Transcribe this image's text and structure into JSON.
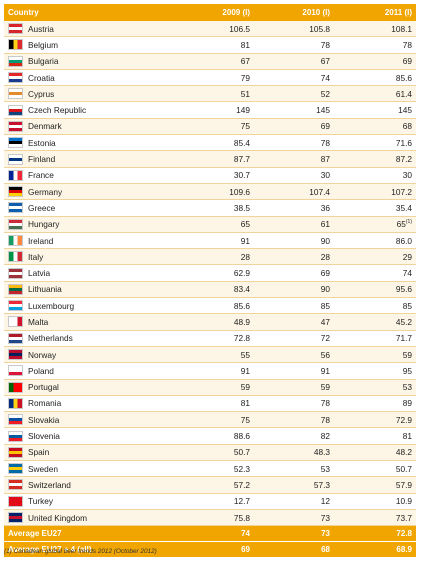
{
  "header": {
    "country": "Country",
    "col2009": "2009 (l)",
    "col2010": "2010 (l)",
    "col2011": "2011 (l)"
  },
  "rows": [
    {
      "country": "Austria",
      "v2009": "106.5",
      "v2010": "105.8",
      "v2011": "108.1",
      "flag": [
        "#d8232a",
        "#ffffff",
        "#d8232a"
      ],
      "dir": "h"
    },
    {
      "country": "Belgium",
      "v2009": "81",
      "v2010": "78",
      "v2011": "78",
      "flag": [
        "#000000",
        "#fcd116",
        "#e0282f"
      ],
      "dir": "v"
    },
    {
      "country": "Bulgaria",
      "v2009": "67",
      "v2010": "67",
      "v2011": "69",
      "flag": [
        "#ffffff",
        "#009b74",
        "#d62612"
      ],
      "dir": "h"
    },
    {
      "country": "Croatia",
      "v2009": "79",
      "v2010": "74",
      "v2011": "85.6",
      "flag": [
        "#e3262a",
        "#ffffff",
        "#1a3c8f"
      ],
      "dir": "h"
    },
    {
      "country": "Cyprus",
      "v2009": "51",
      "v2010": "52",
      "v2011": "61.4",
      "flag": [
        "#ffffff",
        "#e38a2e",
        "#ffffff"
      ],
      "dir": "h"
    },
    {
      "country": "Czech Republic",
      "v2009": "149",
      "v2010": "145",
      "v2011": "145",
      "flag": [
        "#ffffff",
        "#d7141a",
        "#11457e"
      ],
      "dir": "h"
    },
    {
      "country": "Denmark",
      "v2009": "75",
      "v2010": "69",
      "v2011": "68",
      "flag": [
        "#c8102e",
        "#ffffff",
        "#c8102e"
      ],
      "dir": "h"
    },
    {
      "country": "Estonia",
      "v2009": "85.4",
      "v2010": "78",
      "v2011": "71.6",
      "flag": [
        "#0072ce",
        "#000000",
        "#ffffff"
      ],
      "dir": "h"
    },
    {
      "country": "Finland",
      "v2009": "87.7",
      "v2010": "87",
      "v2011": "87.2",
      "flag": [
        "#ffffff",
        "#003580",
        "#ffffff"
      ],
      "dir": "h"
    },
    {
      "country": "France",
      "v2009": "30.7",
      "v2010": "30",
      "v2011": "30",
      "flag": [
        "#002395",
        "#ffffff",
        "#ed2939"
      ],
      "dir": "v"
    },
    {
      "country": "Germany",
      "v2009": "109.6",
      "v2010": "107.4",
      "v2011": "107.2",
      "flag": [
        "#000000",
        "#dd0000",
        "#ffce00"
      ],
      "dir": "h"
    },
    {
      "country": "Greece",
      "v2009": "38.5",
      "v2010": "36",
      "v2011": "35.4",
      "flag": [
        "#0d5eaf",
        "#ffffff",
        "#0d5eaf"
      ],
      "dir": "h"
    },
    {
      "country": "Hungary",
      "v2009": "65",
      "v2010": "61",
      "v2011": "65",
      "v2011sup": "(1)",
      "flag": [
        "#ce2939",
        "#ffffff",
        "#477050"
      ],
      "dir": "h"
    },
    {
      "country": "Ireland",
      "v2009": "91",
      "v2010": "90",
      "v2011": "86.0",
      "flag": [
        "#169b62",
        "#ffffff",
        "#ff883e"
      ],
      "dir": "v"
    },
    {
      "country": "Italy",
      "v2009": "28",
      "v2010": "28",
      "v2011": "29",
      "flag": [
        "#009246",
        "#ffffff",
        "#ce2b37"
      ],
      "dir": "v"
    },
    {
      "country": "Latvia",
      "v2009": "62.9",
      "v2010": "69",
      "v2011": "74",
      "flag": [
        "#9e3039",
        "#ffffff",
        "#9e3039"
      ],
      "dir": "h"
    },
    {
      "country": "Lithuania",
      "v2009": "83.4",
      "v2010": "90",
      "v2011": "95.6",
      "flag": [
        "#fdb913",
        "#006a44",
        "#c1272d"
      ],
      "dir": "h"
    },
    {
      "country": "Luxembourg",
      "v2009": "85.6",
      "v2010": "85",
      "v2011": "85",
      "flag": [
        "#ed2939",
        "#ffffff",
        "#00a1de"
      ],
      "dir": "h"
    },
    {
      "country": "Malta",
      "v2009": "48.9",
      "v2010": "47",
      "v2011": "45.2",
      "flag": [
        "#ffffff",
        "#ffffff",
        "#cf142b"
      ],
      "dir": "v"
    },
    {
      "country": "Netherlands",
      "v2009": "72.8",
      "v2010": "72",
      "v2011": "71.7",
      "flag": [
        "#ae1c28",
        "#ffffff",
        "#21468b"
      ],
      "dir": "h"
    },
    {
      "country": "Norway",
      "v2009": "55",
      "v2010": "56",
      "v2011": "59",
      "flag": [
        "#ba0c2f",
        "#00205b",
        "#ba0c2f"
      ],
      "dir": "h"
    },
    {
      "country": "Poland",
      "v2009": "91",
      "v2010": "91",
      "v2011": "95",
      "flag": [
        "#ffffff",
        "#ffffff",
        "#dc143c"
      ],
      "dir": "h"
    },
    {
      "country": "Portugal",
      "v2009": "59",
      "v2010": "59",
      "v2011": "53",
      "flag": [
        "#006600",
        "#ff0000",
        "#ff0000"
      ],
      "dir": "v"
    },
    {
      "country": "Romania",
      "v2009": "81",
      "v2010": "78",
      "v2011": "89",
      "flag": [
        "#002b7f",
        "#fcd116",
        "#ce1126"
      ],
      "dir": "v"
    },
    {
      "country": "Slovakia",
      "v2009": "75",
      "v2010": "78",
      "v2011": "72.9",
      "flag": [
        "#ffffff",
        "#0b4ea2",
        "#ee1c25"
      ],
      "dir": "h"
    },
    {
      "country": "Slovenia",
      "v2009": "88.6",
      "v2010": "82",
      "v2011": "81",
      "flag": [
        "#ffffff",
        "#005da4",
        "#ed1c24"
      ],
      "dir": "h"
    },
    {
      "country": "Spain",
      "v2009": "50.7",
      "v2010": "48.3",
      "v2011": "48.2",
      "flag": [
        "#c60b1e",
        "#ffc400",
        "#c60b1e"
      ],
      "dir": "h"
    },
    {
      "country": "Sweden",
      "v2009": "52.3",
      "v2010": "53",
      "v2011": "50.7",
      "flag": [
        "#006aa7",
        "#fecc00",
        "#006aa7"
      ],
      "dir": "h"
    },
    {
      "country": "Switzerland",
      "v2009": "57.2",
      "v2010": "57.3",
      "v2011": "57.9",
      "flag": [
        "#d52b1e",
        "#ffffff",
        "#d52b1e"
      ],
      "dir": "h"
    },
    {
      "country": "Turkey",
      "v2009": "12.7",
      "v2010": "12",
      "v2011": "10.9",
      "flag": [
        "#e30a17",
        "#e30a17",
        "#e30a17"
      ],
      "dir": "h"
    },
    {
      "country": "United Kingdom",
      "v2009": "75.8",
      "v2010": "73",
      "v2011": "73.7",
      "flag": [
        "#012169",
        "#c8102e",
        "#012169"
      ],
      "dir": "h"
    }
  ],
  "footer": [
    {
      "label": "Average EU27",
      "v2009": "74",
      "v2010": "73",
      "v2011": "72.8"
    },
    {
      "label": "Average EU27 + 4 (all)",
      "v2009": "69",
      "v2010": "68",
      "v2011": "68.9"
    }
  ],
  "footnote": "(1) Canadean global beer trends 2012 (October 2012)"
}
